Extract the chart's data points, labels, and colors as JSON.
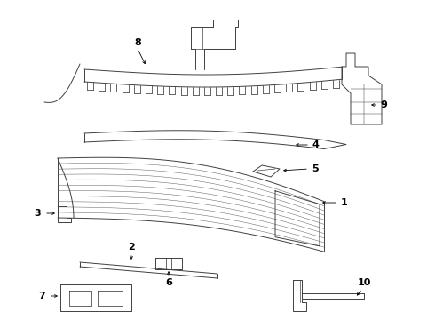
{
  "background_color": "#ffffff",
  "line_color": "#404040",
  "label_color": "#000000",
  "fig_width": 4.9,
  "fig_height": 3.6,
  "dpi": 100,
  "lw": 0.7
}
